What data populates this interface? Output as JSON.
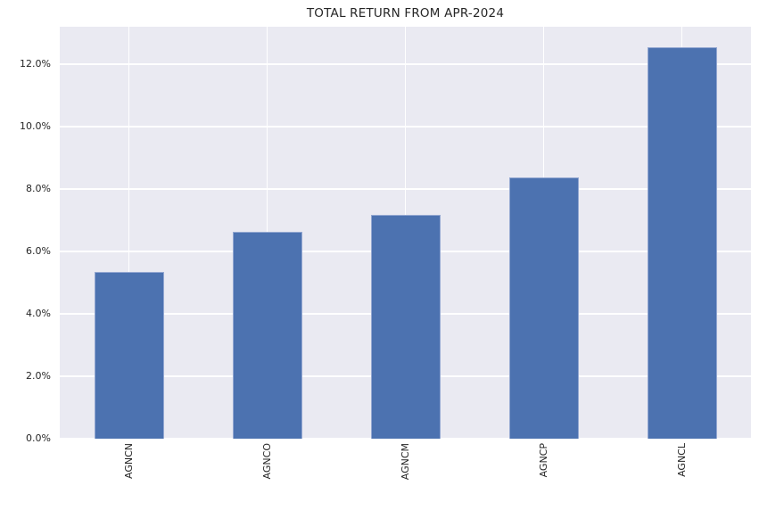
{
  "chart_data": {
    "type": "bar",
    "title": "TOTAL RETURN FROM APR-2024",
    "categories": [
      "AGNCN",
      "AGNCO",
      "AGNCM",
      "AGNCP",
      "AGNCL"
    ],
    "values": [
      5.33,
      6.63,
      7.18,
      8.37,
      12.54
    ],
    "unit": "percent",
    "xlabel": "",
    "ylabel": "",
    "ylim": [
      0,
      13.2
    ],
    "y_ticks": [
      0,
      2,
      4,
      6,
      8,
      10,
      12
    ],
    "y_tick_labels": [
      "0.0%",
      "2.0%",
      "4.0%",
      "6.0%",
      "8.0%",
      "10.0%",
      "12.0%"
    ],
    "grid": "both-x-and-y-white-gridlines",
    "legend": false,
    "colors": {
      "bar": "#4c72b0",
      "bar_edge": "#93a7d1",
      "plot_background": "#eaeaf2",
      "grid": "#ffffff",
      "text": "#262626",
      "figure_background": "#ffffff"
    }
  }
}
